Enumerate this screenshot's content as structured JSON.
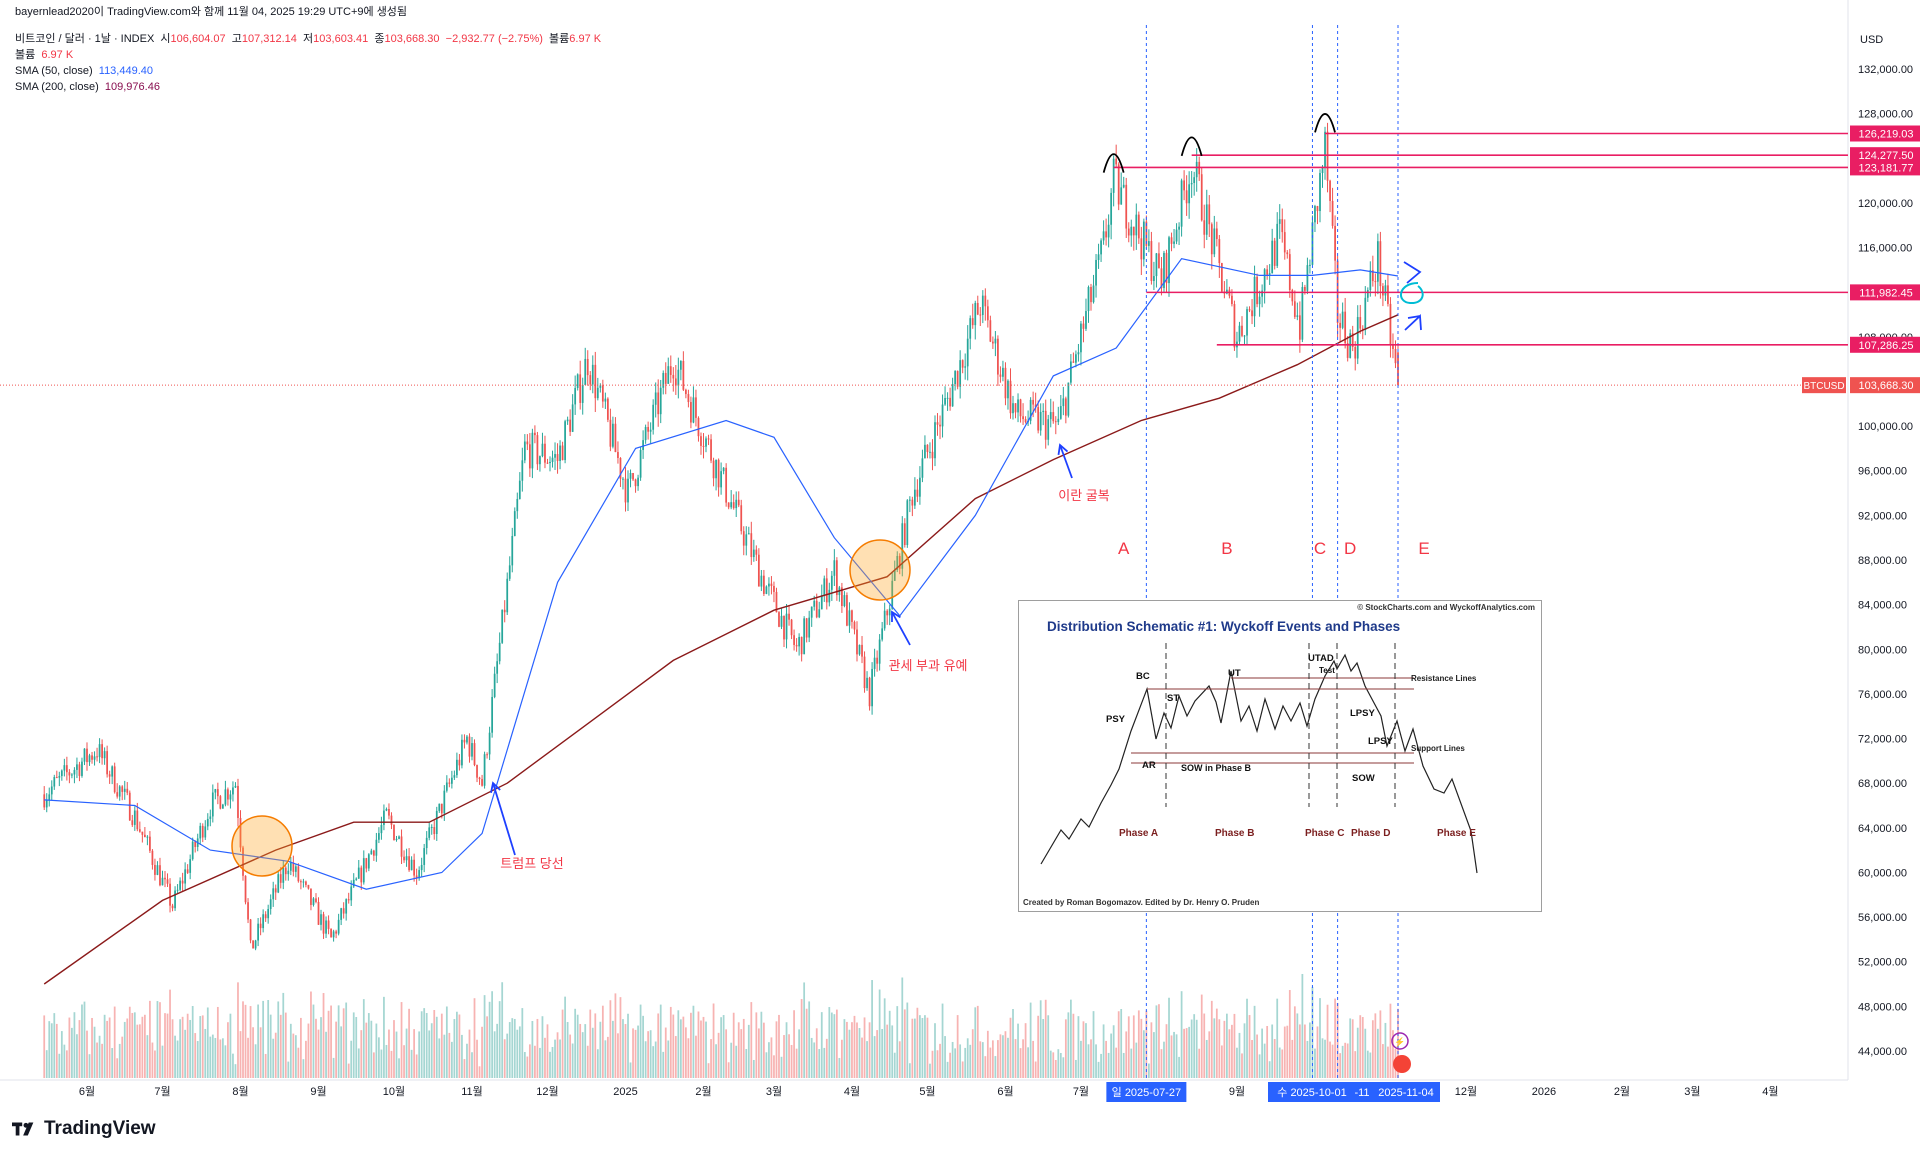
{
  "header": {
    "published": "bayernlead2020이 TradingView.com와 함께 11월 04, 2025 19:29 UTC+9에 생성됨",
    "symbol_line": "비트코인 / 달러 · 1날 · INDEX",
    "o_label": "시",
    "o_value": "106,604.07",
    "h_label": "고",
    "h_value": "107,312.14",
    "l_label": "저",
    "l_value": "103,603.41",
    "c_label": "종",
    "c_value": "103,668.30",
    "change": "−2,932.77 (−2.75%)",
    "vol_label": "볼륨",
    "vol_value": "6.97 K",
    "vol2_label": "볼륨",
    "vol2_value": "6.97 K",
    "sma50_label": "SMA (50, close)",
    "sma50_value": "113,449.40",
    "sma200_label": "SMA (200, close)",
    "sma200_value": "109,976.46"
  },
  "footer": {
    "logo_text": "TradingView"
  },
  "colors": {
    "up": "#26a69a",
    "down": "#ef5350",
    "sma50": "#2962ff",
    "sma200": "#8b1a1a",
    "level": "#e91e63",
    "annot": "#f23645",
    "arrow": "#1e40ff"
  },
  "chart_data": {
    "type": "candlestick",
    "symbol": "BTCUSD",
    "currency": "USD",
    "y_ticks": [
      "132,000.00",
      "128,000.00",
      "124,000.00",
      "120,000.00",
      "116,000.00",
      "112,000.00",
      "108,000.00",
      "104,000.00",
      "100,000.00",
      "96,000.00",
      "92,000.00",
      "88,000.00",
      "84,000.00",
      "80,000.00",
      "76,000.00",
      "72,000.00",
      "68,000.00",
      "64,000.00",
      "60,000.00",
      "56,000.00",
      "52,000.00",
      "48,000.00",
      "44,000.00"
    ],
    "x_ticks": [
      "6월",
      "7월",
      "8월",
      "9월",
      "10월",
      "11월",
      "12월",
      "2025",
      "2월",
      "3월",
      "4월",
      "5월",
      "6월",
      "7월",
      "9월",
      "12월",
      "2026",
      "2월",
      "3월",
      "4월"
    ],
    "x_highlight": [
      "일 2025-07-27",
      "수 2025-10-01",
      "-11",
      "2025-11-04"
    ],
    "last_price": {
      "label": "BTCUSD",
      "value": "103,668.30"
    },
    "price_levels": [
      "126,219.03",
      "124,277.50",
      "123,181.77",
      "111,982.45",
      "107,286.25"
    ],
    "phase_labels": [
      "A",
      "B",
      "C",
      "D",
      "E"
    ],
    "annotations": [
      "트럼프 당선",
      "관세 부과 유예",
      "이란 굴복"
    ],
    "ohlc_anchor_path": [
      [
        "2024-05-15",
        67000
      ],
      [
        "2024-05-25",
        69000
      ],
      [
        "2024-06-05",
        71000
      ],
      [
        "2024-06-20",
        65000
      ],
      [
        "2024-07-05",
        57000
      ],
      [
        "2024-07-20",
        66000
      ],
      [
        "2024-07-30",
        68000
      ],
      [
        "2024-08-05",
        53000
      ],
      [
        "2024-08-20",
        61000
      ],
      [
        "2024-09-06",
        54000
      ],
      [
        "2024-09-28",
        65000
      ],
      [
        "2024-10-10",
        60000
      ],
      [
        "2024-10-30",
        72000
      ],
      [
        "2024-11-05",
        68000
      ],
      [
        "2024-11-22",
        98000
      ],
      [
        "2024-12-05",
        97000
      ],
      [
        "2024-12-17",
        106000
      ],
      [
        "2025-01-02",
        94000
      ],
      [
        "2025-01-20",
        106000
      ],
      [
        "2025-02-05",
        97000
      ],
      [
        "2025-02-25",
        86000
      ],
      [
        "2025-03-10",
        80000
      ],
      [
        "2025-03-25",
        87000
      ],
      [
        "2025-04-08",
        76000
      ],
      [
        "2025-04-25",
        94000
      ],
      [
        "2025-05-10",
        103000
      ],
      [
        "2025-05-22",
        111000
      ],
      [
        "2025-06-05",
        101000
      ],
      [
        "2025-06-22",
        100000
      ],
      [
        "2025-07-10",
        116000
      ],
      [
        "2025-07-14",
        122000
      ],
      [
        "2025-08-02",
        113000
      ],
      [
        "2025-08-14",
        123500
      ],
      [
        "2025-09-01",
        108000
      ],
      [
        "2025-09-18",
        117000
      ],
      [
        "2025-09-26",
        109000
      ],
      [
        "2025-10-06",
        125000
      ],
      [
        "2025-10-11",
        110000
      ],
      [
        "2025-10-17",
        107000
      ],
      [
        "2025-10-27",
        115000
      ],
      [
        "2025-11-04",
        103668
      ]
    ],
    "sma50_path": [
      [
        "2024-05-15",
        66500
      ],
      [
        "2024-06-20",
        66000
      ],
      [
        "2024-07-20",
        62000
      ],
      [
        "2024-08-20",
        61000
      ],
      [
        "2024-09-20",
        58500
      ],
      [
        "2024-10-20",
        60000
      ],
      [
        "2024-11-05",
        63500
      ],
      [
        "2024-12-05",
        86000
      ],
      [
        "2025-01-05",
        98000
      ],
      [
        "2025-02-10",
        100500
      ],
      [
        "2025-03-01",
        99000
      ],
      [
        "2025-03-25",
        90000
      ],
      [
        "2025-04-20",
        83000
      ],
      [
        "2025-05-20",
        92000
      ],
      [
        "2025-06-20",
        104500
      ],
      [
        "2025-07-15",
        107000
      ],
      [
        "2025-08-10",
        115000
      ],
      [
        "2025-09-10",
        113500
      ],
      [
        "2025-10-01",
        113500
      ],
      [
        "2025-10-20",
        114000
      ],
      [
        "2025-11-04",
        113449
      ]
    ],
    "sma200_path": [
      [
        "2024-05-15",
        50000
      ],
      [
        "2024-07-01",
        57500
      ],
      [
        "2024-08-15",
        62000
      ],
      [
        "2024-09-15",
        64500
      ],
      [
        "2024-10-15",
        64500
      ],
      [
        "2024-11-15",
        68000
      ],
      [
        "2024-12-15",
        73000
      ],
      [
        "2025-01-20",
        79000
      ],
      [
        "2025-03-01",
        83500
      ],
      [
        "2025-04-15",
        86500
      ],
      [
        "2025-05-20",
        93500
      ],
      [
        "2025-06-20",
        97000
      ],
      [
        "2025-07-25",
        100500
      ],
      [
        "2025-08-25",
        102500
      ],
      [
        "2025-09-25",
        105500
      ],
      [
        "2025-10-20",
        108500
      ],
      [
        "2025-11-04",
        109976
      ]
    ],
    "volume_level": "relative",
    "wyckoff": {
      "copyright": "© StockCharts.com and WyckoffAnalytics.com",
      "title": "Distribution Schematic #1: Wyckoff Events and Phases",
      "credit": "Created by Roman Bogomazov. Edited by Dr. Henry O. Pruden",
      "events": [
        "BC",
        "PSY",
        "ST",
        "AR",
        "UT",
        "SOW in Phase B",
        "UTAD",
        "Test",
        "LPSY",
        "LPSY",
        "SOW"
      ],
      "lines": [
        "Resistance Lines",
        "Support Lines"
      ],
      "phases": [
        "Phase A",
        "Phase B",
        "Phase C",
        "Phase D",
        "Phase E"
      ]
    }
  }
}
